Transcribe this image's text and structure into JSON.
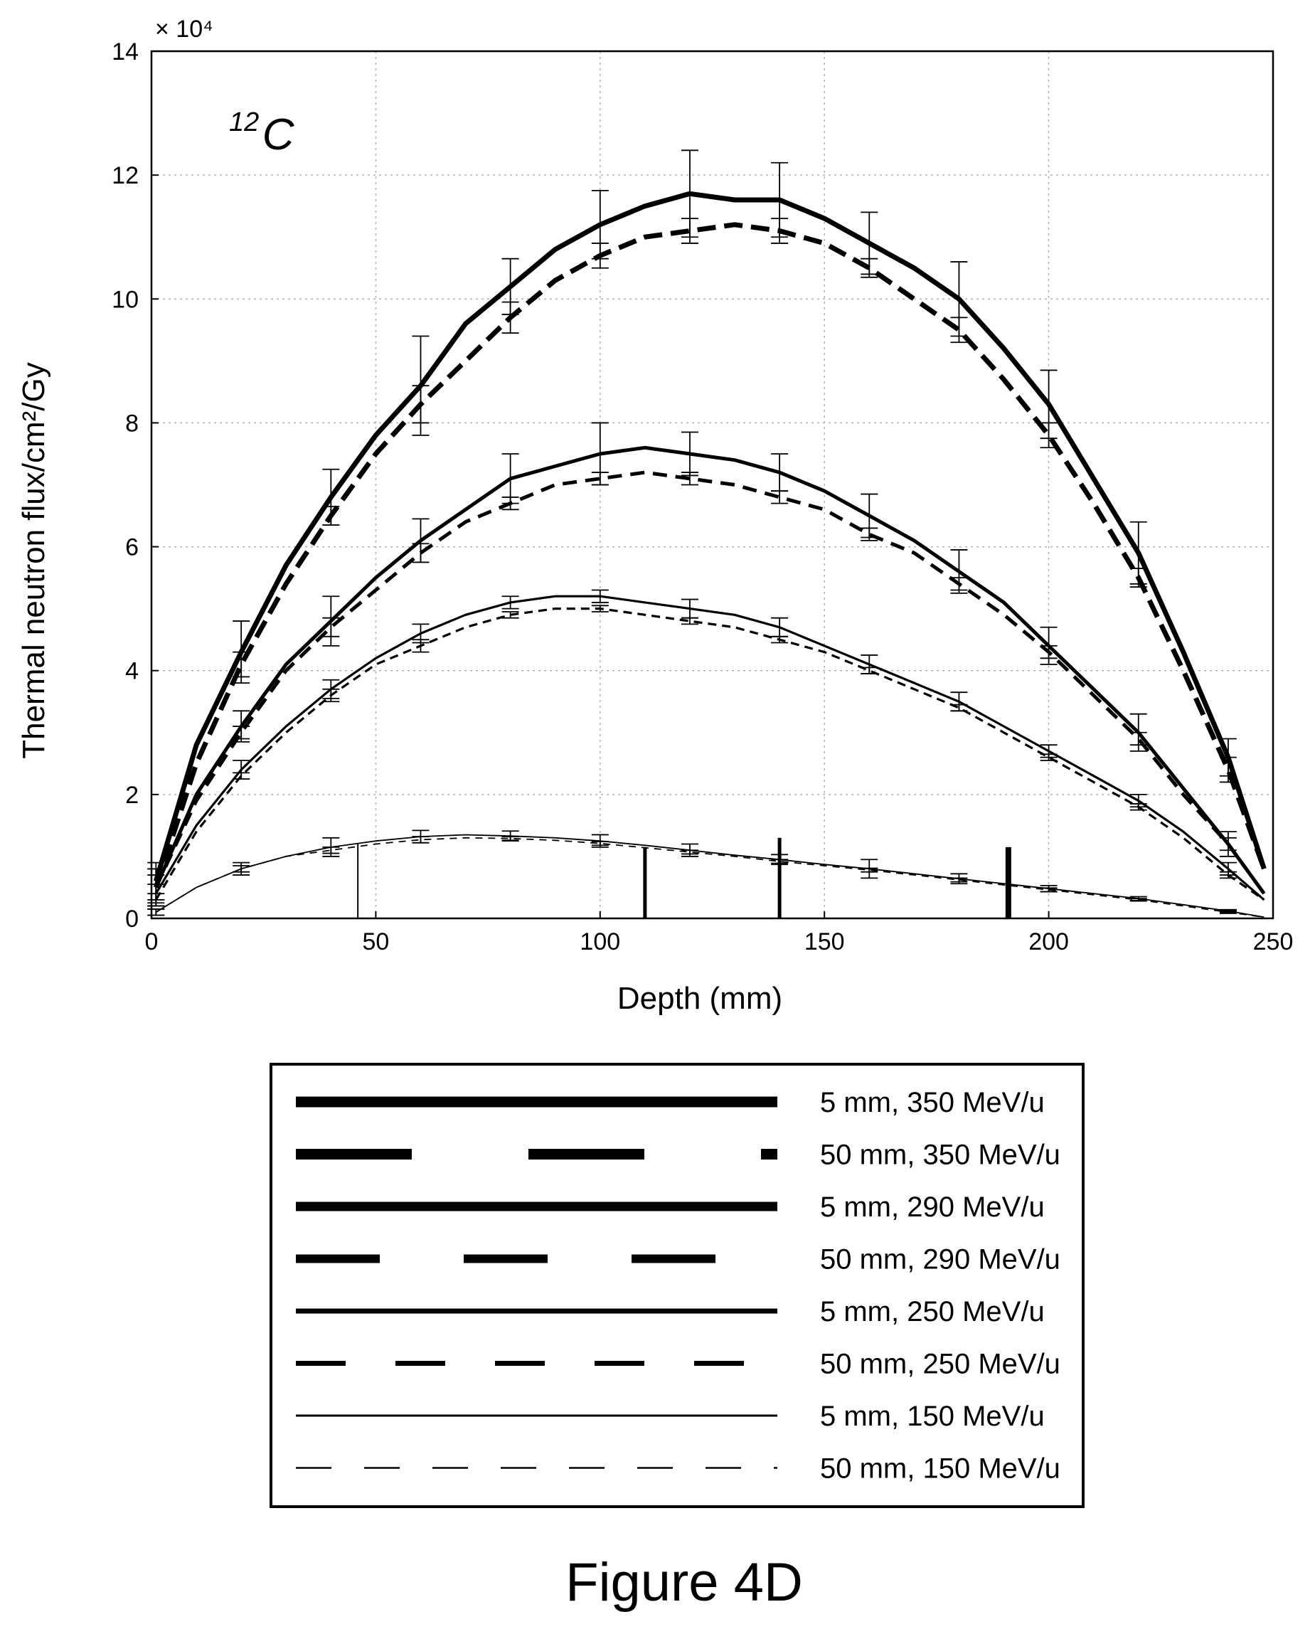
{
  "chart_data": {
    "type": "line",
    "xlabel": "Depth (mm)",
    "ylabel": "Thermal neutron flux/cm²/Gy",
    "y_multiplier": "× 10⁴",
    "ion_label": {
      "sup": "12",
      "base": "C"
    },
    "xlim": [
      0,
      250
    ],
    "ylim": [
      0,
      14
    ],
    "x_ticks": [
      "0",
      "50",
      "100",
      "150",
      "200",
      "250"
    ],
    "y_ticks": [
      "0",
      "2",
      "4",
      "6",
      "8",
      "10",
      "12",
      "14"
    ],
    "grid": true,
    "legend_position": "below",
    "series": [
      {
        "name": "5 mm, 350 MeV/u",
        "style": "thick-solid",
        "x": [
          1,
          10,
          20,
          30,
          40,
          50,
          60,
          70,
          80,
          90,
          100,
          110,
          120,
          130,
          140,
          150,
          160,
          170,
          180,
          190,
          200,
          210,
          220,
          230,
          240,
          248
        ],
        "y": [
          0.6,
          2.8,
          4.3,
          5.7,
          6.8,
          7.8,
          8.6,
          9.6,
          10.2,
          10.8,
          11.2,
          11.5,
          11.7,
          11.6,
          11.6,
          11.3,
          10.9,
          10.5,
          10.0,
          9.2,
          8.3,
          7.1,
          5.9,
          4.3,
          2.6,
          0.8
        ],
        "errors": [
          0.3,
          0,
          0.5,
          0,
          0.45,
          0,
          0.8,
          0,
          0.45,
          0,
          0.55,
          0,
          0.7,
          0,
          0.6,
          0,
          0.5,
          0,
          0.6,
          0,
          0.55,
          0,
          0.5,
          0,
          0.3,
          0
        ]
      },
      {
        "name": "50 mm, 350 MeV/u",
        "style": "thick-dash",
        "x": [
          1,
          10,
          20,
          30,
          40,
          50,
          60,
          70,
          80,
          90,
          100,
          110,
          120,
          130,
          140,
          150,
          160,
          170,
          180,
          190,
          200,
          210,
          220,
          230,
          240,
          248
        ],
        "y": [
          0.5,
          2.5,
          4.1,
          5.4,
          6.5,
          7.5,
          8.3,
          9.0,
          9.7,
          10.3,
          10.7,
          11.0,
          11.1,
          11.2,
          11.1,
          10.9,
          10.5,
          10.0,
          9.5,
          8.7,
          7.8,
          6.7,
          5.5,
          4.0,
          2.4,
          0.8
        ],
        "errors": [
          0.3,
          0,
          0.2,
          0,
          0.15,
          0,
          0.3,
          0,
          0.25,
          0,
          0.2,
          0,
          0.2,
          0,
          0.2,
          0,
          0.15,
          0,
          0.2,
          0,
          0.2,
          0,
          0.15,
          0,
          0.2,
          0
        ]
      },
      {
        "name": "5 mm, 290 MeV/u",
        "style": "medium-solid",
        "x": [
          1,
          10,
          20,
          30,
          40,
          50,
          60,
          70,
          80,
          90,
          100,
          110,
          120,
          130,
          140,
          150,
          160,
          170,
          180,
          190,
          200,
          210,
          220,
          230,
          240,
          248
        ],
        "y": [
          0.5,
          2.0,
          3.1,
          4.1,
          4.8,
          5.5,
          6.1,
          6.6,
          7.1,
          7.3,
          7.5,
          7.6,
          7.5,
          7.4,
          7.2,
          6.9,
          6.5,
          6.1,
          5.6,
          5.1,
          4.4,
          3.7,
          3.0,
          2.1,
          1.2,
          0.4
        ],
        "errors": [
          0.3,
          0,
          0.25,
          0,
          0.4,
          0,
          0.35,
          0,
          0.4,
          0,
          0.5,
          0,
          0.35,
          0,
          0.3,
          0,
          0.35,
          0,
          0.35,
          0,
          0.3,
          0,
          0.3,
          0,
          0.2,
          0
        ]
      },
      {
        "name": "50 mm, 290 MeV/u",
        "style": "medium-dash",
        "x": [
          1,
          10,
          20,
          30,
          40,
          50,
          60,
          70,
          80,
          90,
          100,
          110,
          120,
          130,
          140,
          150,
          160,
          170,
          180,
          190,
          200,
          210,
          220,
          230,
          240,
          248
        ],
        "y": [
          0.5,
          1.9,
          3.0,
          4.0,
          4.7,
          5.3,
          5.9,
          6.4,
          6.7,
          7.0,
          7.1,
          7.2,
          7.1,
          7.0,
          6.8,
          6.6,
          6.2,
          5.9,
          5.4,
          4.9,
          4.3,
          3.6,
          2.9,
          2.0,
          1.2,
          0.4
        ],
        "errors": [
          0.2,
          0,
          0.1,
          0,
          0.15,
          0,
          0.15,
          0,
          0.1,
          0,
          0.1,
          0,
          0.1,
          0,
          0.1,
          0,
          0.1,
          0,
          0.1,
          0,
          0.1,
          0,
          0.1,
          0,
          0.1,
          0
        ]
      },
      {
        "name": "5 mm, 250 MeV/u",
        "style": "thin-solid",
        "x": [
          1,
          10,
          20,
          30,
          40,
          50,
          60,
          70,
          80,
          90,
          100,
          110,
          120,
          130,
          140,
          150,
          160,
          170,
          180,
          190,
          200,
          210,
          220,
          230,
          240,
          248
        ],
        "y": [
          0.4,
          1.5,
          2.4,
          3.1,
          3.7,
          4.2,
          4.6,
          4.9,
          5.1,
          5.2,
          5.2,
          5.1,
          5.0,
          4.9,
          4.7,
          4.4,
          4.1,
          3.8,
          3.5,
          3.1,
          2.7,
          2.3,
          1.9,
          1.4,
          0.8,
          0.3
        ],
        "errors": [
          0.15,
          0,
          0.15,
          0,
          0.15,
          0,
          0.15,
          0,
          0.1,
          0,
          0.1,
          0,
          0.15,
          0,
          0.15,
          0,
          0.15,
          0,
          0.15,
          0,
          0.1,
          0,
          0.1,
          0,
          0.1,
          0
        ]
      },
      {
        "name": "50 mm, 250 MeV/u",
        "style": "thin-dash",
        "x": [
          1,
          10,
          20,
          30,
          40,
          50,
          60,
          70,
          80,
          90,
          100,
          110,
          120,
          130,
          140,
          150,
          160,
          170,
          180,
          190,
          200,
          210,
          220,
          230,
          240,
          248
        ],
        "y": [
          0.3,
          1.4,
          2.3,
          3.0,
          3.6,
          4.1,
          4.4,
          4.7,
          4.9,
          5.0,
          5.0,
          4.9,
          4.8,
          4.7,
          4.5,
          4.3,
          4.0,
          3.7,
          3.4,
          3.0,
          2.6,
          2.2,
          1.8,
          1.3,
          0.7,
          0.3
        ],
        "errors": [
          0.1,
          0,
          0.05,
          0,
          0.1,
          0,
          0.1,
          0,
          0.05,
          0,
          0.05,
          0,
          0.05,
          0,
          0.05,
          0,
          0.05,
          0,
          0.05,
          0,
          0.05,
          0,
          0.05,
          0,
          0.05,
          0
        ]
      },
      {
        "name": "5 mm, 150 MeV/u",
        "style": "hair-solid",
        "x": [
          1,
          10,
          20,
          30,
          40,
          50,
          60,
          70,
          80,
          90,
          100,
          110,
          120,
          130,
          140,
          150,
          160,
          170,
          180,
          190,
          200,
          210,
          220,
          230,
          240,
          248
        ],
        "y": [
          0.1,
          0.5,
          0.8,
          1.0,
          1.15,
          1.25,
          1.32,
          1.35,
          1.33,
          1.3,
          1.25,
          1.18,
          1.1,
          1.02,
          0.95,
          0.87,
          0.8,
          0.72,
          0.64,
          0.56,
          0.48,
          0.4,
          0.32,
          0.22,
          0.12,
          0.02
        ],
        "errors": [
          0.05,
          0,
          0.1,
          0,
          0.15,
          0,
          0.1,
          0,
          0.08,
          0,
          0.1,
          0,
          0.1,
          0,
          0.08,
          0,
          0.15,
          0,
          0.08,
          0,
          0.05,
          0,
          0.03,
          0,
          0.02,
          0
        ]
      },
      {
        "name": "50 mm, 150 MeV/u",
        "style": "hair-dash",
        "x": [
          1,
          10,
          20,
          30,
          40,
          50,
          60,
          70,
          80,
          90,
          100,
          110,
          120,
          130,
          140,
          150,
          160,
          170,
          180,
          190,
          200,
          210,
          220,
          230,
          240,
          248
        ],
        "y": [
          0.1,
          0.5,
          0.8,
          1.0,
          1.1,
          1.2,
          1.27,
          1.3,
          1.29,
          1.26,
          1.21,
          1.14,
          1.07,
          1.0,
          0.92,
          0.85,
          0.78,
          0.7,
          0.62,
          0.54,
          0.46,
          0.38,
          0.3,
          0.2,
          0.1,
          0.02
        ],
        "errors": [
          0.05,
          0,
          0.05,
          0,
          0.05,
          0,
          0.05,
          0,
          0.03,
          0,
          0.03,
          0,
          0.03,
          0,
          0.03,
          0,
          0.03,
          0,
          0.03,
          0,
          0.03,
          0,
          0.02,
          0,
          0.02,
          0
        ]
      }
    ],
    "markers": [
      {
        "x": 46,
        "height": 1.2,
        "style": "thin"
      },
      {
        "x": 110,
        "height": 1.15,
        "style": "medium"
      },
      {
        "x": 140,
        "height": 1.3,
        "style": "medium"
      },
      {
        "x": 191,
        "height": 1.15,
        "style": "thick"
      }
    ]
  },
  "caption": "Figure 4D"
}
